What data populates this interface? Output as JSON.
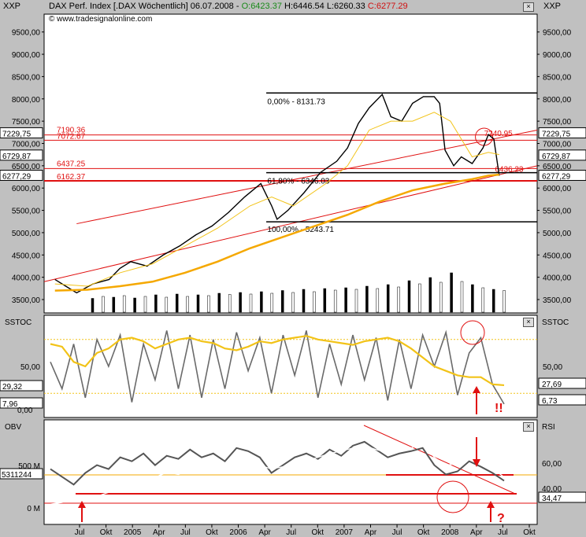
{
  "header": {
    "symbol_left": "XXP",
    "title": "DAX Perf. Index [.DAX  Wöchentlich] 06.07.2008 - ",
    "open": "O:6423.37",
    "high": "H:6446.54",
    "low": "L:6260.33",
    "close": "C:6277.29",
    "watermark": "© www.tradesignalonline.com",
    "symbol_right": "XXP"
  },
  "colors": {
    "price": "#000000",
    "ma_yellow": "#f2c318",
    "ma_orange": "#f5a800",
    "bands": "#808080",
    "trend": "#e01010",
    "stoch_white": "#ffffff",
    "stoch_dark": "#6a6a6a",
    "obv": "#555555",
    "rsi": "#ffffff"
  },
  "chart_data": [
    {
      "type": "line",
      "panel": "price",
      "title": "DAX Perf. Index [.DAX  Wöchentlich] 06.07.2008",
      "ylim": [
        3200,
        9900
      ],
      "y_ticks": [
        3500,
        4000,
        4500,
        5000,
        5500,
        6000,
        6500,
        7000,
        7500,
        8000,
        8500,
        9000,
        9500
      ],
      "y_tick_labels": [
        "3500,00",
        "4000,00",
        "4500,00",
        "5000,00",
        "5500,00",
        "6000,00",
        "6500,00",
        "7000,00",
        "7500,00",
        "8000,00",
        "8500,00",
        "9000,00",
        "9500,00"
      ],
      "left_markers": [
        {
          "label": "7229,75",
          "value": 7229.75
        },
        {
          "label": "6729,87",
          "value": 6729.87
        },
        {
          "label": "6277,29",
          "value": 6277.29
        }
      ],
      "right_markers": [
        {
          "label": "7229,75",
          "value": 7229.75
        },
        {
          "label": "6729,87",
          "value": 6729.87
        },
        {
          "label": "6277,29",
          "value": 6277.29
        }
      ],
      "horizontal_levels": [
        {
          "label": "7190.36",
          "value": 7190.36
        },
        {
          "label": "7072.67",
          "value": 7072.67
        },
        {
          "label": "6437.25",
          "value": 6437.25
        },
        {
          "label": "6162.37",
          "value": 6162.37
        }
      ],
      "fibonacci": [
        {
          "label": "0,00% - 8131.73",
          "value": 8131.73
        },
        {
          "label": "61,80% - 6346.03",
          "value": 6346.03
        },
        {
          "label": "100,00% - 5243.71",
          "value": 5243.71
        }
      ],
      "annotations": [
        {
          "label": "7240.95",
          "value": 7240.95
        },
        {
          "label": "6436.23",
          "value": 6436.23
        }
      ],
      "series": [
        {
          "name": "DAX",
          "x": [
            2004.4,
            2004.5,
            2004.6,
            2004.75,
            2004.9,
            2005.0,
            2005.1,
            2005.25,
            2005.4,
            2005.55,
            2005.7,
            2005.85,
            2006.0,
            2006.15,
            2006.3,
            2006.4,
            2006.45,
            2006.55,
            2006.7,
            2006.85,
            2007.0,
            2007.1,
            2007.2,
            2007.3,
            2007.42,
            2007.5,
            2007.6,
            2007.7,
            2007.8,
            2007.9,
            2007.95,
            2008.0,
            2008.08,
            2008.15,
            2008.25,
            2008.35,
            2008.4,
            2008.45,
            2008.5
          ],
          "values": [
            3950,
            3800,
            3650,
            3850,
            3950,
            4200,
            4350,
            4250,
            4500,
            4700,
            4950,
            5150,
            5450,
            5800,
            6100,
            5600,
            5300,
            5500,
            5900,
            6350,
            6600,
            6900,
            7450,
            7800,
            8100,
            7600,
            7500,
            7900,
            8050,
            8050,
            7900,
            6850,
            6500,
            6700,
            6550,
            6900,
            7200,
            7100,
            6277
          ]
        },
        {
          "name": "MA short",
          "x": [
            2004.4,
            2004.7,
            2005.0,
            2005.3,
            2005.6,
            2005.9,
            2006.2,
            2006.4,
            2006.6,
            2006.9,
            2007.1,
            2007.3,
            2007.5,
            2007.7,
            2007.9,
            2008.05,
            2008.25,
            2008.4,
            2008.5
          ],
          "values": [
            3850,
            3800,
            4100,
            4300,
            4700,
            5100,
            5600,
            5800,
            5600,
            6100,
            6500,
            7300,
            7500,
            7500,
            7700,
            7500,
            6700,
            6800,
            6750
          ]
        },
        {
          "name": "MA long",
          "x": [
            2004.4,
            2004.7,
            2005.0,
            2005.3,
            2005.6,
            2005.9,
            2006.2,
            2006.5,
            2006.8,
            2007.1,
            2007.4,
            2007.7,
            2008.0,
            2008.25,
            2008.4,
            2008.5
          ],
          "values": [
            3700,
            3720,
            3800,
            3900,
            4100,
            4350,
            4650,
            4900,
            5150,
            5400,
            5700,
            5950,
            6100,
            6200,
            6280,
            6300
          ]
        }
      ],
      "volume": [
        0.35,
        0.4,
        0.38,
        0.42,
        0.36,
        0.4,
        0.44,
        0.38,
        0.46,
        0.4,
        0.44,
        0.42,
        0.48,
        0.45,
        0.5,
        0.46,
        0.52,
        0.48,
        0.55,
        0.5,
        0.58,
        0.52,
        0.6,
        0.56,
        0.62,
        0.58,
        0.66,
        0.6,
        0.7,
        0.64,
        0.8,
        0.72,
        0.88,
        0.76,
        1.0,
        0.78,
        0.7,
        0.62,
        0.58,
        0.55
      ]
    },
    {
      "type": "line",
      "panel": "sstoc",
      "title": "SSTOC",
      "ylim": [
        0,
        100
      ],
      "y_tick_labels": [
        "50,00"
      ],
      "left_markers": [
        {
          "label": "29,32"
        },
        {
          "label": "7,96"
        },
        {
          "label": "0,00"
        }
      ],
      "right_markers": [
        {
          "label": "27,69"
        },
        {
          "label": "6,73"
        }
      ],
      "reference_lines": [
        20,
        80
      ],
      "annotation": "!!",
      "series": [
        {
          "name": "white",
          "values": [
            60,
            30,
            80,
            20,
            85,
            55,
            90,
            15,
            80,
            40,
            95,
            30,
            90,
            20,
            85,
            30,
            92,
            50,
            88,
            25,
            90,
            45,
            95,
            20,
            80,
            35,
            90,
            40,
            88,
            18,
            85,
            30,
            90,
            55,
            92,
            22,
            70,
            88,
            35,
            12
          ]
        },
        {
          "name": "dark",
          "values": [
            55,
            25,
            75,
            15,
            80,
            50,
            85,
            10,
            75,
            35,
            90,
            25,
            85,
            15,
            80,
            25,
            88,
            45,
            82,
            20,
            85,
            40,
            90,
            15,
            75,
            30,
            85,
            35,
            82,
            12,
            80,
            25,
            85,
            50,
            88,
            18,
            65,
            82,
            30,
            8
          ]
        },
        {
          "name": "yellow",
          "values": [
            75,
            72,
            55,
            50,
            65,
            70,
            80,
            82,
            78,
            70,
            75,
            80,
            82,
            78,
            76,
            70,
            68,
            72,
            78,
            76,
            80,
            82,
            84,
            80,
            78,
            76,
            74,
            78,
            80,
            82,
            78,
            70,
            60,
            50,
            45,
            40,
            38,
            38,
            30,
            29
          ]
        }
      ]
    },
    {
      "type": "line",
      "panel": "obv_rsi",
      "title": "OBV",
      "subtitle": "RSI",
      "x_tick_labels": [
        "Jul",
        "Okt",
        "2005",
        "Apr",
        "Jul",
        "Okt",
        "2006",
        "Apr",
        "Jul",
        "Okt",
        "2007",
        "Apr",
        "Jul",
        "Okt",
        "2008",
        "Apr",
        "Jul",
        "Okt"
      ],
      "left_tick_labels": [
        "500 M",
        "0 M"
      ],
      "left_marker": "5311244",
      "right_tick_labels": [
        "60,00",
        "40,00"
      ],
      "right_marker": "34,47",
      "annotation": "?",
      "series": [
        {
          "name": "OBV",
          "values": [
            55,
            45,
            35,
            50,
            60,
            55,
            70,
            65,
            75,
            60,
            72,
            68,
            80,
            70,
            75,
            65,
            82,
            78,
            70,
            50,
            60,
            70,
            75,
            68,
            80,
            72,
            85,
            90,
            80,
            70,
            75,
            78,
            82,
            60,
            48,
            52,
            65,
            58,
            50,
            40
          ]
        },
        {
          "name": "RSI",
          "values": [
            10,
            12,
            15,
            18,
            20,
            25,
            30,
            35,
            40,
            45,
            50,
            48,
            52,
            55,
            60,
            58,
            62,
            65,
            60,
            55,
            58,
            62,
            66,
            70,
            75,
            78,
            82,
            85,
            80,
            76,
            78,
            82,
            88,
            70,
            60,
            62,
            68,
            60,
            55,
            45
          ]
        }
      ]
    }
  ]
}
